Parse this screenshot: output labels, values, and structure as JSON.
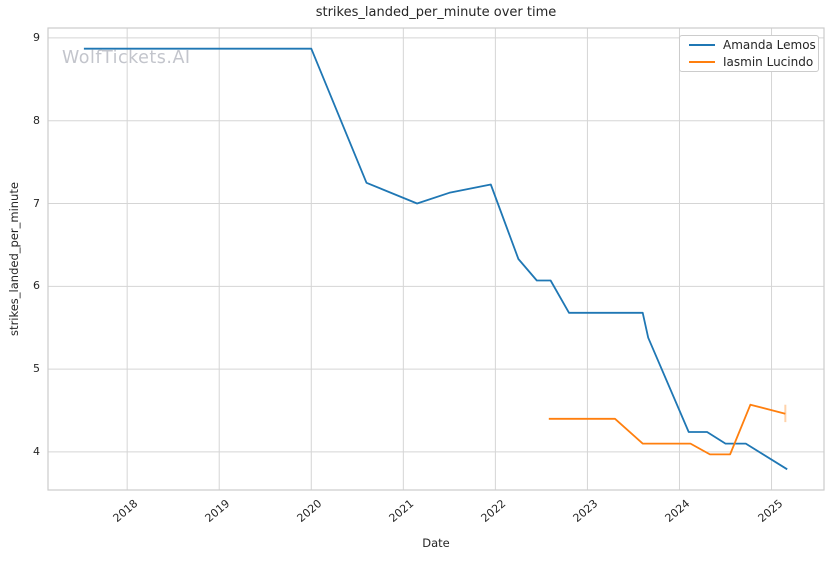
{
  "watermark": "WolfTickets.AI",
  "chart_data": {
    "type": "line",
    "title": "strikes_landed_per_minute over time",
    "xlabel": "Date",
    "ylabel": "strikes_landed_per_minute",
    "xlim": [
      2017.14,
      2025.57
    ],
    "ylim": [
      3.54,
      9.12
    ],
    "xticks": [
      2018,
      2019,
      2020,
      2021,
      2022,
      2023,
      2024,
      2025
    ],
    "yticks": [
      4,
      5,
      6,
      7,
      8,
      9
    ],
    "grid": true,
    "grid_color": "#d5d5d5",
    "spine_color": "#cccccc",
    "legend_position": "upper right",
    "series": [
      {
        "name": "Amanda Lemos",
        "color": "#1f77b4",
        "points": [
          [
            2017.53,
            8.87
          ],
          [
            2020.0,
            8.87
          ],
          [
            2020.6,
            7.25
          ],
          [
            2021.15,
            7.0
          ],
          [
            2021.5,
            7.13
          ],
          [
            2021.95,
            7.23
          ],
          [
            2022.25,
            6.33
          ],
          [
            2022.45,
            6.07
          ],
          [
            2022.6,
            6.07
          ],
          [
            2022.8,
            5.68
          ],
          [
            2023.6,
            5.68
          ],
          [
            2023.66,
            5.38
          ],
          [
            2024.1,
            4.24
          ],
          [
            2024.3,
            4.24
          ],
          [
            2024.5,
            4.1
          ],
          [
            2024.72,
            4.1
          ],
          [
            2025.17,
            3.79
          ]
        ]
      },
      {
        "name": "Iasmin Lucindo",
        "color": "#ff7f0e",
        "points": [
          [
            2022.58,
            4.4
          ],
          [
            2023.3,
            4.4
          ],
          [
            2023.6,
            4.1
          ],
          [
            2024.12,
            4.1
          ],
          [
            2024.33,
            3.97
          ],
          [
            2024.55,
            3.97
          ],
          [
            2024.77,
            4.57
          ],
          [
            2025.15,
            4.46
          ]
        ],
        "end_tick": {
          "x": 2025.15,
          "y1": 4.57,
          "y2": 4.36,
          "opacity": 0.35
        }
      }
    ]
  }
}
